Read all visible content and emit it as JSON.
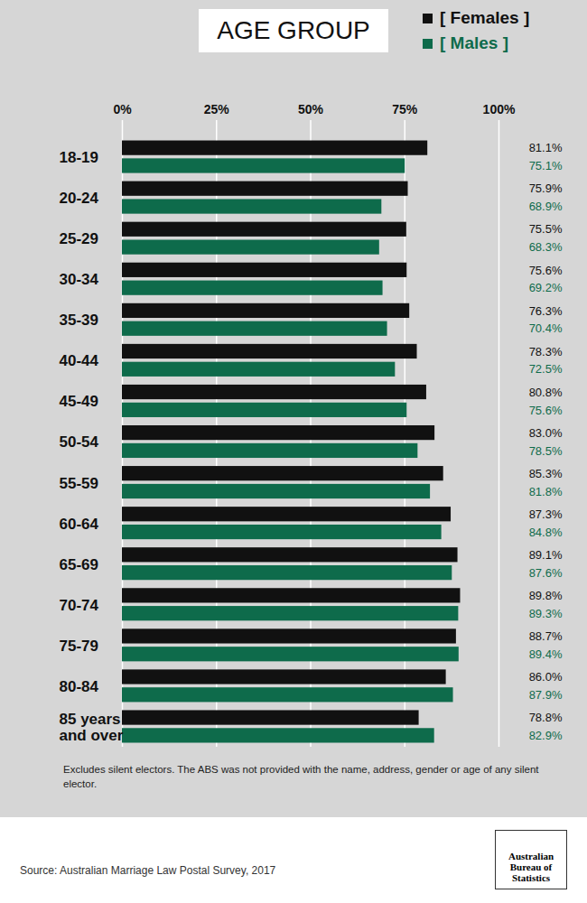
{
  "chart_data": {
    "type": "bar",
    "orientation": "horizontal",
    "title": "AGE GROUP",
    "categories": [
      "18-19",
      "20-24",
      "25-29",
      "30-34",
      "35-39",
      "40-44",
      "45-49",
      "50-54",
      "55-59",
      "60-64",
      "65-69",
      "70-74",
      "75-79",
      "80-84",
      "85 years\nand over"
    ],
    "series": [
      {
        "name": "[ Females ]",
        "color": "#111111",
        "values": [
          81.1,
          75.9,
          75.5,
          75.6,
          76.3,
          78.3,
          80.8,
          83.0,
          85.3,
          87.3,
          89.1,
          89.8,
          88.7,
          86.0,
          78.8
        ],
        "value_labels": [
          "81.1%",
          "75.9%",
          "75.5%",
          "75.6%",
          "76.3%",
          "78.3%",
          "80.8%",
          "83.0%",
          "85.3%",
          "87.3%",
          "89.1%",
          "89.8%",
          "88.7%",
          "86.0%",
          "78.8%"
        ]
      },
      {
        "name": "[ Males ]",
        "color": "#0e6b4b",
        "values": [
          75.1,
          68.9,
          68.3,
          69.2,
          70.4,
          72.5,
          75.6,
          78.5,
          81.8,
          84.8,
          87.6,
          89.3,
          89.4,
          87.9,
          82.9
        ],
        "value_labels": [
          "75.1%",
          "68.9%",
          "68.3%",
          "69.2%",
          "70.4%",
          "72.5%",
          "75.6%",
          "78.5%",
          "81.8%",
          "84.8%",
          "87.6%",
          "89.3%",
          "89.4%",
          "87.9%",
          "82.9%"
        ]
      }
    ],
    "xlim": [
      0,
      100
    ],
    "xticks": [
      {
        "value": 0,
        "label": "0%"
      },
      {
        "value": 25,
        "label": "25%"
      },
      {
        "value": 50,
        "label": "50%"
      },
      {
        "value": 75,
        "label": "75%"
      },
      {
        "value": 100,
        "label": "100%"
      }
    ],
    "grid": true,
    "data_labels": true,
    "legend": "top-right",
    "caption": "Excludes silent electors. The ABS was not provided with the name, address, gender or age of any silent elector.",
    "source": "Source: Australian Marriage Law Postal Survey, 2017",
    "logo": "Australian Bureau of Statistics"
  }
}
